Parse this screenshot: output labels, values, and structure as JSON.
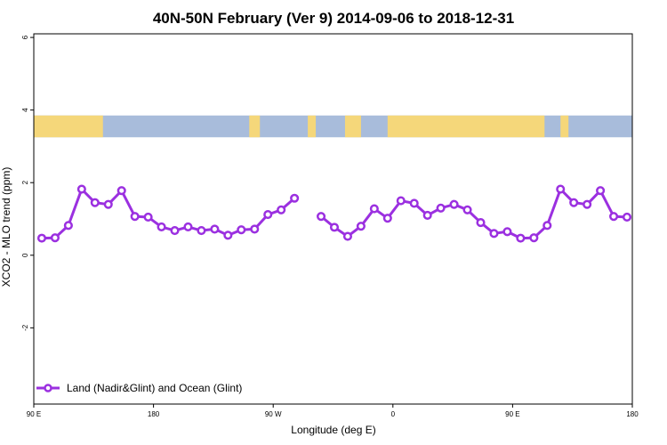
{
  "chart_data": {
    "type": "line",
    "title": "40N-50N February (Ver 9)   2014-09-06 to 2018-12-31",
    "xlabel": "Longitude (deg E)",
    "ylabel": "XCO2 - MLO trend (ppm)",
    "x_ticks": [
      {
        "value": 90,
        "label": "90 E"
      },
      {
        "value": 180,
        "label": "180"
      },
      {
        "value": 270,
        "label": "90 W"
      },
      {
        "value": 360,
        "label": "0"
      },
      {
        "value": 450,
        "label": "90 E"
      },
      {
        "value": 540,
        "label": "180"
      }
    ],
    "y_ticks": [
      {
        "value": -2,
        "label": "-2"
      },
      {
        "value": 0,
        "label": "0"
      },
      {
        "value": 2,
        "label": "2"
      },
      {
        "value": 4,
        "label": "4"
      },
      {
        "value": 6,
        "label": "6"
      }
    ],
    "xlim": [
      90,
      540
    ],
    "ylim": [
      -4.1,
      6.1
    ],
    "legend_position": "bottom-left",
    "series": [
      {
        "name": "Land (Nadir&Glint) and Ocean (Glint)",
        "color": "#9b30e0",
        "x": [
          96,
          106,
          116,
          126,
          136,
          146,
          156,
          166,
          176,
          186,
          196,
          206,
          216,
          226,
          236,
          246,
          256,
          266,
          276,
          286,
          296,
          306,
          316,
          326,
          336,
          346,
          356,
          366,
          376,
          386,
          396,
          406,
          416,
          426,
          436,
          446,
          456,
          466,
          476,
          486,
          496,
          506,
          516,
          526,
          536
        ],
        "y": [
          0.47,
          0.48,
          0.82,
          1.82,
          1.45,
          1.4,
          1.78,
          1.07,
          1.05,
          0.78,
          0.68,
          0.78,
          0.68,
          0.72,
          0.55,
          0.7,
          0.72,
          1.12,
          1.25,
          1.57,
          null,
          1.07,
          0.77,
          0.52,
          0.8,
          1.28,
          1.02,
          1.5,
          1.43,
          1.1,
          1.3,
          1.4,
          1.25,
          0.9,
          0.6,
          0.65,
          0.47,
          0.48,
          0.82,
          1.82,
          1.45,
          1.4,
          1.78,
          1.07,
          1.05
        ]
      }
    ]
  },
  "map_band": {
    "y_range": [
      3.25,
      3.85
    ],
    "land_color": "#f5d77a",
    "ocean_color": "#a8bcdb",
    "land_spans": [
      [
        90,
        142
      ],
      [
        252,
        260
      ],
      [
        296,
        302
      ],
      [
        324,
        336
      ],
      [
        356,
        474
      ],
      [
        486,
        492
      ]
    ]
  }
}
